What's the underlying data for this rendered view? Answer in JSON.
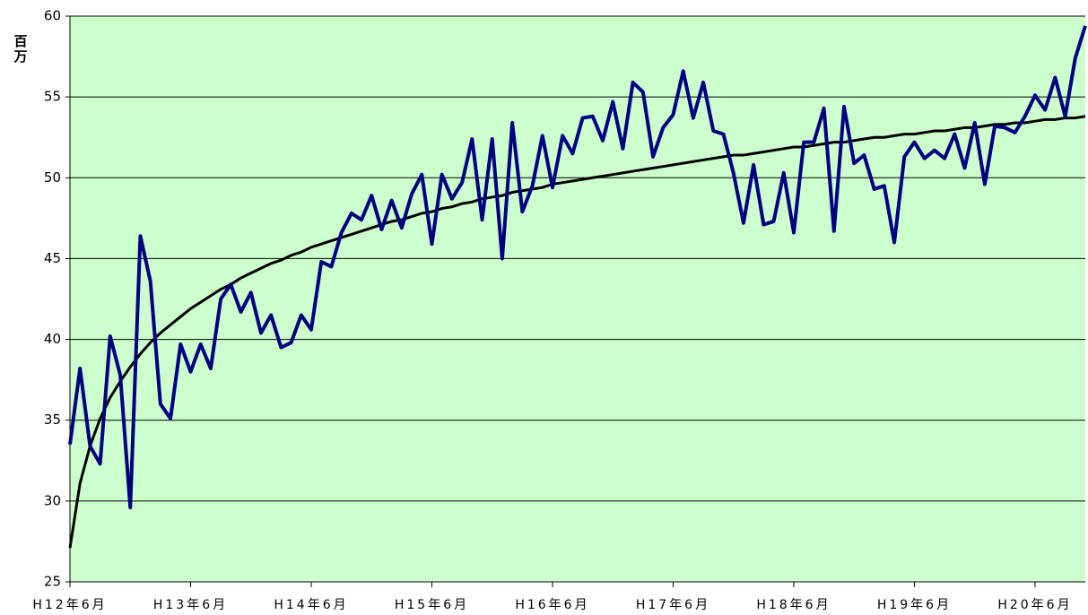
{
  "chart_data": {
    "type": "line",
    "ylabel": "百万",
    "categories": [
      "H12年6月",
      null,
      null,
      null,
      null,
      null,
      null,
      null,
      null,
      null,
      null,
      null,
      "H13年6月",
      null,
      null,
      null,
      null,
      null,
      null,
      null,
      null,
      null,
      null,
      null,
      "H14年6月",
      null,
      null,
      null,
      null,
      null,
      null,
      null,
      null,
      null,
      null,
      null,
      "H15年6月",
      null,
      null,
      null,
      null,
      null,
      null,
      null,
      null,
      null,
      null,
      null,
      "H16年6月",
      null,
      null,
      null,
      null,
      null,
      null,
      null,
      null,
      null,
      null,
      null,
      "H17年6月",
      null,
      null,
      null,
      null,
      null,
      null,
      null,
      null,
      null,
      null,
      null,
      "H18年6月",
      null,
      null,
      null,
      null,
      null,
      null,
      null,
      null,
      null,
      null,
      null,
      "H19年6月",
      null,
      null,
      null,
      null,
      null,
      null,
      null,
      null,
      null,
      null,
      null,
      "H20年6月",
      null,
      null,
      null,
      null,
      null
    ],
    "series": [
      {
        "color": "#000080",
        "width": 4,
        "values": [
          33.5,
          38.2,
          33.4,
          32.3,
          40.2,
          37.8,
          29.6,
          46.4,
          43.6,
          36.0,
          35.1,
          39.7,
          38.0,
          39.7,
          38.2,
          42.5,
          43.4,
          41.7,
          42.9,
          40.4,
          41.5,
          39.5,
          39.8,
          41.5,
          40.6,
          44.8,
          44.5,
          46.6,
          47.8,
          47.4,
          48.9,
          46.8,
          48.6,
          46.9,
          49.0,
          50.2,
          45.9,
          50.2,
          48.7,
          49.7,
          52.4,
          47.4,
          52.4,
          45.0,
          53.4,
          47.9,
          49.5,
          52.6,
          49.4,
          52.6,
          51.5,
          53.7,
          53.8,
          52.3,
          54.7,
          51.8,
          55.9,
          55.3,
          51.3,
          53.1,
          53.9,
          56.6,
          53.7,
          55.9,
          52.9,
          52.7,
          50.3,
          47.2,
          50.8,
          47.1,
          47.3,
          50.3,
          46.6,
          52.2,
          52.2,
          54.3,
          46.7,
          54.4,
          50.9,
          51.4,
          49.3,
          49.5,
          46.0,
          51.3,
          52.2,
          51.2,
          51.7,
          51.2,
          52.7,
          50.6,
          53.4,
          49.6,
          53.2,
          53.1,
          52.8,
          53.8,
          55.1,
          54.2,
          56.2,
          53.8,
          57.4,
          59.4
        ]
      },
      {
        "color": "#000000",
        "width": 3,
        "values": [
          27.1,
          31.1,
          33.4,
          35.1,
          36.4,
          37.4,
          38.3,
          39.1,
          39.8,
          40.4,
          40.9,
          41.4,
          41.9,
          42.3,
          42.7,
          43.1,
          43.4,
          43.8,
          44.1,
          44.4,
          44.7,
          44.9,
          45.2,
          45.4,
          45.7,
          45.9,
          46.1,
          46.3,
          46.5,
          46.7,
          46.9,
          47.1,
          47.3,
          47.4,
          47.6,
          47.8,
          47.9,
          48.1,
          48.2,
          48.4,
          48.5,
          48.7,
          48.8,
          48.9,
          49.1,
          49.2,
          49.3,
          49.4,
          49.6,
          49.7,
          49.8,
          49.9,
          50.0,
          50.1,
          50.2,
          50.3,
          50.4,
          50.5,
          50.6,
          50.7,
          50.8,
          50.9,
          51.0,
          51.1,
          51.2,
          51.3,
          51.4,
          51.4,
          51.5,
          51.6,
          51.7,
          51.8,
          51.9,
          51.9,
          52.0,
          52.1,
          52.2,
          52.2,
          52.3,
          52.4,
          52.5,
          52.5,
          52.6,
          52.7,
          52.7,
          52.8,
          52.9,
          52.9,
          53.0,
          53.1,
          53.1,
          53.2,
          53.3,
          53.3,
          53.4,
          53.4,
          53.5,
          53.6,
          53.6,
          53.7,
          53.7,
          53.8
        ]
      }
    ],
    "ylim": [
      25,
      60
    ],
    "yticks": [
      25,
      30,
      35,
      40,
      45,
      50,
      55,
      60
    ],
    "grid": true,
    "background": "#ccffcc"
  }
}
